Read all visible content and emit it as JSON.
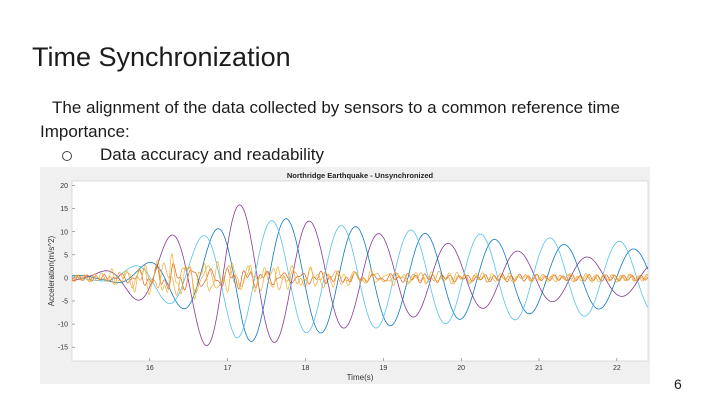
{
  "slide": {
    "title": "Time Synchronization",
    "bullet_1": "The alignment of the data collected by sensors to a common reference time",
    "bullet_2": "Importance:",
    "sub_bullet": "Data accuracy and readability",
    "page_number": "6"
  },
  "chart_data": {
    "type": "line",
    "title": "Northridge Earthquake - Unsynchronized",
    "xlabel": "Time(s)",
    "ylabel": "Acceleration(m/s^2)",
    "xlim": [
      15.0,
      22.4
    ],
    "ylim": [
      -18,
      21
    ],
    "x_ticks": [
      16,
      17,
      18,
      19,
      20,
      21,
      22
    ],
    "y_ticks": [
      20,
      15,
      10,
      5,
      0,
      -5,
      -10,
      -15
    ],
    "grid": false,
    "legend": "none",
    "series": [
      {
        "color": "#7e2f8e",
        "kind": "large",
        "amp": 17,
        "freq": 1.12,
        "phase": 0.2,
        "t0": 15.2,
        "peak": 16.9,
        "decay": 0.28
      },
      {
        "color": "#0072bd",
        "kind": "large",
        "amp": 14,
        "freq": 1.12,
        "phase": 2.3,
        "t0": 15.4,
        "peak": 17.2,
        "decay": 0.16
      },
      {
        "color": "#4dbeee",
        "kind": "large",
        "amp": 13,
        "freq": 1.12,
        "phase": 3.6,
        "t0": 15.3,
        "peak": 17.1,
        "decay": 0.1
      },
      {
        "color": "#d95319",
        "kind": "noise",
        "amp": 3,
        "freq": 4.3,
        "phase": 0.5,
        "t0": 15.2,
        "peak": 16.3,
        "decay": 0.55
      },
      {
        "color": "#edb120",
        "kind": "noise",
        "amp": 5,
        "freq": 5.1,
        "phase": 1.1,
        "t0": 15.1,
        "peak": 16.2,
        "decay": 0.5
      },
      {
        "color": "#e8a23c",
        "kind": "noise",
        "amp": 4,
        "freq": 3.7,
        "phase": 2.0,
        "t0": 15.1,
        "peak": 16.4,
        "decay": 0.45
      }
    ]
  }
}
